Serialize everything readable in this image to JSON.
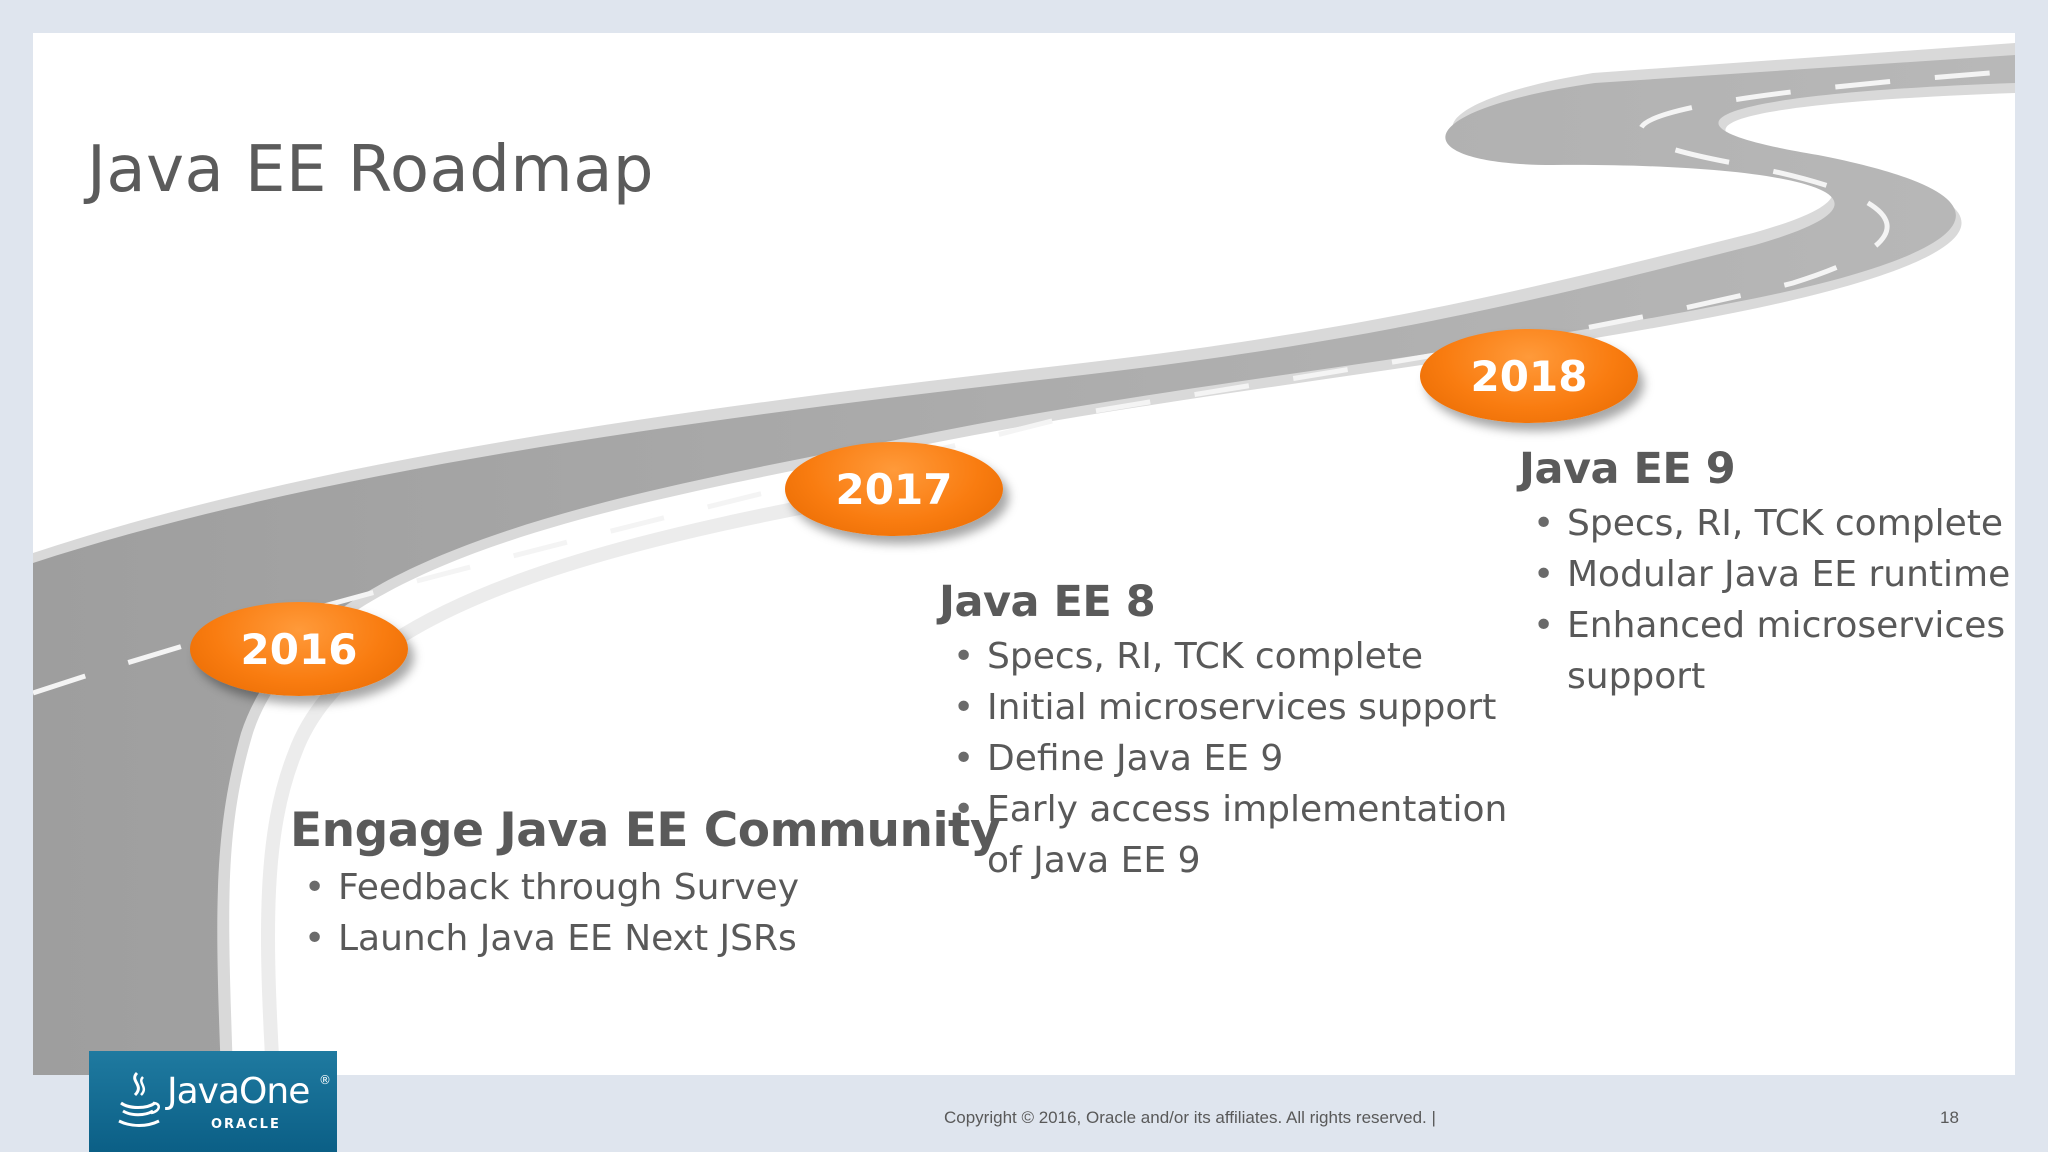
{
  "slide": {
    "title": "Java EE Roadmap",
    "milestones": [
      {
        "year": "2016"
      },
      {
        "year": "2017"
      },
      {
        "year": "2018"
      }
    ],
    "phases": [
      {
        "heading": "Engage Java EE Community",
        "bullets": [
          "Feedback through Survey",
          "Launch Java EE Next JSRs"
        ]
      },
      {
        "heading": "Java EE 8",
        "bullets": [
          "Specs, RI, TCK complete",
          "Initial microservices support",
          "Define Java EE 9",
          "Early access implementation",
          "of Java EE 9"
        ]
      },
      {
        "heading": "Java EE 9",
        "bullets": [
          "Specs, RI, TCK complete",
          "Modular Java EE runtime",
          "Enhanced microservices",
          "support"
        ]
      }
    ],
    "bullet_glyph": "•"
  },
  "footer": {
    "copyright": "Copyright © 2016, Oracle and/or its affiliates. All rights reserved.  |",
    "page_number": "18",
    "logo": {
      "wordmark": "JavaOne",
      "trademark": "®",
      "company": "ORACLE"
    }
  },
  "colors": {
    "badge_orange": "#f97c10",
    "road_gray": "#a9a9a9",
    "text_gray": "#595959",
    "logo_blue": "#0b5f86",
    "frame_bg": "#dfe5ee"
  },
  "icons": {
    "road": "winding-road-illustration",
    "logo": "java-cup-icon"
  }
}
